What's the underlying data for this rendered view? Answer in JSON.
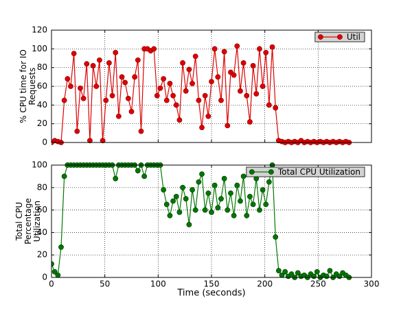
{
  "chart_data": [
    {
      "type": "line",
      "ylabel": [
        "% CPU time for IO",
        "Requests"
      ],
      "x": [
        0,
        3,
        6,
        9,
        12,
        15,
        18,
        21,
        24,
        27,
        30,
        33,
        36,
        39,
        42,
        45,
        48,
        51,
        54,
        57,
        60,
        63,
        66,
        69,
        72,
        75,
        78,
        81,
        84,
        87,
        90,
        93,
        96,
        99,
        102,
        105,
        108,
        111,
        114,
        117,
        120,
        123,
        126,
        129,
        132,
        135,
        138,
        141,
        144,
        147,
        150,
        153,
        156,
        159,
        162,
        165,
        168,
        171,
        174,
        177,
        180,
        183,
        186,
        189,
        192,
        195,
        198,
        201,
        204,
        207,
        210,
        213,
        216,
        219,
        222,
        225,
        228,
        231,
        234,
        237,
        240,
        243,
        246,
        249,
        252,
        255,
        258,
        261,
        264,
        267,
        270,
        273,
        276,
        279
      ],
      "series": [
        {
          "name": "Util",
          "color": "#dd0000",
          "marker_edge": "#880000",
          "values": [
            0,
            2,
            1,
            0,
            45,
            68,
            60,
            95,
            12,
            58,
            47,
            84,
            2,
            82,
            60,
            88,
            2,
            45,
            85,
            50,
            96,
            28,
            70,
            64,
            47,
            33,
            70,
            88,
            12,
            100,
            100,
            98,
            100,
            50,
            58,
            68,
            45,
            63,
            50,
            40,
            24,
            85,
            55,
            78,
            63,
            92,
            45,
            16,
            50,
            28,
            65,
            100,
            70,
            45,
            97,
            18,
            75,
            72,
            103,
            55,
            85,
            50,
            22,
            82,
            52,
            100,
            60,
            96,
            40,
            102,
            37,
            2,
            1,
            0,
            1,
            0,
            1,
            0,
            2,
            0,
            1,
            0,
            1,
            0,
            1,
            0,
            1,
            0,
            1,
            0,
            1,
            0,
            1,
            0
          ]
        }
      ],
      "xlim": [
        0,
        300
      ],
      "xticks": [
        0,
        50,
        100,
        150,
        200,
        250,
        300
      ],
      "ylim": [
        0,
        120
      ],
      "yticks": [
        0,
        20,
        40,
        60,
        80,
        100,
        120
      ],
      "grid": true,
      "legend": "upper right"
    },
    {
      "type": "line",
      "ylabel": [
        "Total CPU",
        "Percentage",
        "Utilization"
      ],
      "xlabel": "Time (seconds)",
      "x": [
        0,
        3,
        6,
        9,
        12,
        15,
        18,
        21,
        24,
        27,
        30,
        33,
        36,
        39,
        42,
        45,
        48,
        51,
        54,
        57,
        60,
        63,
        66,
        69,
        72,
        75,
        78,
        81,
        84,
        87,
        90,
        93,
        96,
        99,
        102,
        105,
        108,
        111,
        114,
        117,
        120,
        123,
        126,
        129,
        132,
        135,
        138,
        141,
        144,
        147,
        150,
        153,
        156,
        159,
        162,
        165,
        168,
        171,
        174,
        177,
        180,
        183,
        186,
        189,
        192,
        195,
        198,
        201,
        204,
        207,
        210,
        213,
        216,
        219,
        222,
        225,
        228,
        231,
        234,
        237,
        240,
        243,
        246,
        249,
        252,
        255,
        258,
        261,
        264,
        267,
        270,
        273,
        276,
        279
      ],
      "series": [
        {
          "name": "Total CPU Utilization",
          "color": "#007700",
          "marker_edge": "#003300",
          "values": [
            12,
            5,
            2,
            27,
            90,
            100,
            100,
            100,
            100,
            100,
            100,
            100,
            100,
            100,
            100,
            100,
            100,
            100,
            100,
            100,
            88,
            100,
            100,
            100,
            100,
            100,
            100,
            95,
            100,
            90,
            100,
            100,
            100,
            100,
            100,
            78,
            65,
            55,
            68,
            72,
            58,
            80,
            70,
            47,
            78,
            60,
            85,
            92,
            60,
            75,
            58,
            82,
            62,
            70,
            88,
            60,
            75,
            55,
            82,
            68,
            90,
            55,
            72,
            65,
            88,
            60,
            78,
            65,
            85,
            100,
            36,
            6,
            2,
            5,
            1,
            3,
            0,
            4,
            1,
            2,
            0,
            3,
            1,
            5,
            0,
            2,
            1,
            6,
            0,
            3,
            1,
            4,
            2,
            0
          ]
        }
      ],
      "xlim": [
        0,
        300
      ],
      "xticks": [
        0,
        50,
        100,
        150,
        200,
        250,
        300
      ],
      "ylim": [
        0,
        100
      ],
      "yticks": [
        0,
        20,
        40,
        60,
        80,
        100
      ],
      "grid": true,
      "legend": "upper right"
    }
  ]
}
